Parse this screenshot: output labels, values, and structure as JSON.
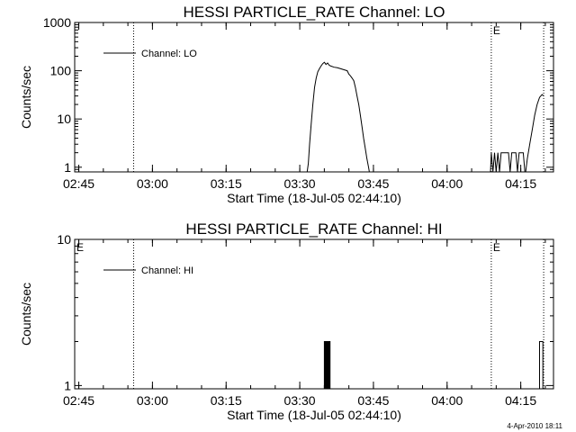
{
  "footer_timestamp": "4-Apr-2010 18:11",
  "chart_data": [
    {
      "type": "line",
      "title": "HESSI PARTICLE_RATE Channel: LO",
      "xlabel": "Start Time (18-Jul-05 02:44:10)",
      "ylabel": "Counts/sec",
      "y_scale": "log",
      "xlim": [
        "02:44:10",
        "04:21:40"
      ],
      "ylim": [
        0.8,
        1000
      ],
      "x_ticks": [
        "02:45",
        "03:00",
        "03:15",
        "03:30",
        "03:45",
        "04:00",
        "04:15"
      ],
      "y_ticks": [
        "1",
        "10",
        "100",
        "1000"
      ],
      "legend": {
        "label": "Channel: LO",
        "position": "top-left"
      },
      "markers": [
        {
          "time": "02:56:10",
          "label": ""
        },
        {
          "time": "04:09:00",
          "label": "E"
        },
        {
          "time": "04:19:40",
          "label": ""
        }
      ],
      "series": [
        {
          "name": "Channel: LO",
          "segments": [
            [
              [
                "03:31:30",
                0.8
              ],
              [
                "03:31:45",
                1.2
              ],
              [
                "03:32:00",
                3
              ],
              [
                "03:32:20",
                8
              ],
              [
                "03:32:40",
                20
              ],
              [
                "03:33:00",
                45
              ],
              [
                "03:33:20",
                70
              ],
              [
                "03:33:40",
                95
              ],
              [
                "03:34:00",
                110
              ],
              [
                "03:34:20",
                125
              ],
              [
                "03:34:40",
                140
              ],
              [
                "03:35:00",
                150
              ],
              [
                "03:35:20",
                135
              ],
              [
                "03:35:40",
                145
              ],
              [
                "03:36:00",
                130
              ],
              [
                "03:36:20",
                125
              ],
              [
                "03:37:00",
                118
              ],
              [
                "03:37:40",
                115
              ],
              [
                "03:38:20",
                110
              ],
              [
                "03:39:00",
                105
              ],
              [
                "03:39:40",
                100
              ],
              [
                "03:40:00",
                85
              ],
              [
                "03:40:20",
                78
              ],
              [
                "03:40:40",
                70
              ],
              [
                "03:41:00",
                62
              ],
              [
                "03:41:20",
                45
              ],
              [
                "03:41:40",
                30
              ],
              [
                "03:42:00",
                20
              ],
              [
                "03:42:20",
                12
              ],
              [
                "03:42:40",
                7
              ],
              [
                "03:43:00",
                4
              ],
              [
                "03:43:20",
                2.5
              ],
              [
                "03:43:40",
                1.5
              ],
              [
                "03:44:00",
                1
              ],
              [
                "03:44:10",
                0.8
              ]
            ],
            [
              [
                "04:08:50",
                0.8
              ],
              [
                "04:09:00",
                2
              ],
              [
                "04:09:20",
                0.8
              ],
              [
                "04:09:40",
                2
              ],
              [
                "04:10:00",
                0.8
              ],
              [
                "04:10:20",
                2
              ],
              [
                "04:10:40",
                0.8
              ],
              [
                "04:11:00",
                2
              ],
              [
                "04:12:30",
                2
              ],
              [
                "04:12:50",
                0.8
              ],
              [
                "04:13:10",
                2
              ],
              [
                "04:14:00",
                2
              ],
              [
                "04:14:20",
                0.8
              ],
              [
                "04:14:40",
                2
              ],
              [
                "04:15:30",
                2
              ],
              [
                "04:15:50",
                0.8
              ]
            ],
            [
              [
                "04:16:00",
                0.8
              ],
              [
                "04:16:20",
                1.5
              ],
              [
                "04:16:50",
                3
              ],
              [
                "04:17:20",
                6
              ],
              [
                "04:17:50",
                12
              ],
              [
                "04:18:20",
                20
              ],
              [
                "04:18:50",
                28
              ],
              [
                "04:19:20",
                32
              ],
              [
                "04:19:40",
                30
              ]
            ]
          ]
        }
      ]
    },
    {
      "type": "line",
      "title": "HESSI PARTICLE_RATE Channel: HI",
      "xlabel": "Start Time (18-Jul-05 02:44:10)",
      "ylabel": "Counts/sec",
      "y_scale": "log",
      "xlim": [
        "02:44:10",
        "04:21:40"
      ],
      "ylim": [
        0.95,
        10
      ],
      "x_ticks": [
        "02:45",
        "03:00",
        "03:15",
        "03:30",
        "03:45",
        "04:00",
        "04:15"
      ],
      "y_ticks": [
        "1",
        "10"
      ],
      "legend": {
        "label": "Channel: HI",
        "position": "top-left"
      },
      "markers": [
        {
          "time": "02:44:10",
          "label": "E"
        },
        {
          "time": "02:56:10",
          "label": ""
        },
        {
          "time": "04:09:00",
          "label": "E"
        },
        {
          "time": "04:19:40",
          "label": ""
        }
      ],
      "series": [
        {
          "name": "Channel: HI",
          "segments": [
            [
              [
                "03:35:00",
                0.95
              ],
              [
                "03:35:00",
                2
              ],
              [
                "03:35:10",
                2
              ],
              [
                "03:35:10",
                0.95
              ],
              [
                "03:35:20",
                0.95
              ],
              [
                "03:35:20",
                2
              ],
              [
                "03:35:30",
                2
              ],
              [
                "03:35:30",
                0.95
              ],
              [
                "03:35:40",
                0.95
              ],
              [
                "03:35:40",
                2
              ],
              [
                "03:35:50",
                2
              ],
              [
                "03:35:50",
                0.95
              ],
              [
                "03:36:00",
                0.95
              ],
              [
                "03:36:00",
                2
              ],
              [
                "03:36:10",
                2
              ],
              [
                "03:36:10",
                0.95
              ]
            ],
            [
              [
                "04:18:50",
                0.95
              ],
              [
                "04:18:50",
                2
              ],
              [
                "04:19:30",
                2
              ],
              [
                "04:19:30",
                0.95
              ]
            ]
          ]
        }
      ]
    }
  ]
}
